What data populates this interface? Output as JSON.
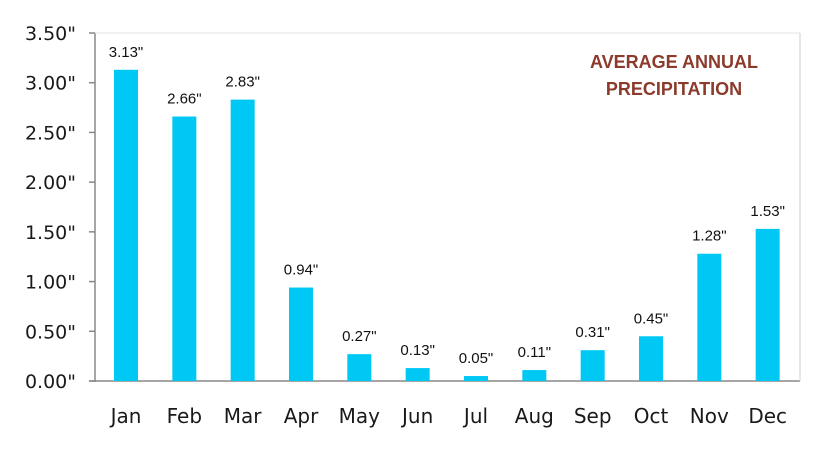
{
  "chart_data": {
    "type": "bar",
    "title_lines": [
      "AVERAGE ANNUAL",
      "PRECIPITATION"
    ],
    "categories": [
      "Jan",
      "Feb",
      "Mar",
      "Apr",
      "May",
      "Jun",
      "Jul",
      "Aug",
      "Sep",
      "Oct",
      "Nov",
      "Dec"
    ],
    "values": [
      3.13,
      2.66,
      2.83,
      0.94,
      0.27,
      0.13,
      0.05,
      0.11,
      0.31,
      0.45,
      1.28,
      1.53
    ],
    "data_labels": [
      "3.13\"",
      "2.66\"",
      "2.83\"",
      "0.94\"",
      "0.27\"",
      "0.13\"",
      "0.05\"",
      "0.11\"",
      "0.31\"",
      "0.45\"",
      "1.28\"",
      "1.53\""
    ],
    "y_ticks": [
      0,
      0.5,
      1,
      1.5,
      2,
      2.5,
      3,
      3.5
    ],
    "y_tick_labels": [
      "0.00\"",
      "0.50\"",
      "1.00\"",
      "1.50\"",
      "2.00\"",
      "2.50\"",
      "3.00\"",
      "3.50\""
    ],
    "ylim": [
      0,
      3.5
    ],
    "xlabel": "",
    "ylabel": "",
    "grid": false,
    "legend": "none",
    "colors": {
      "bar": "#00C8F4",
      "title": "#8B3A2B",
      "axis": "#888888",
      "text": "#1a1a1a"
    }
  }
}
